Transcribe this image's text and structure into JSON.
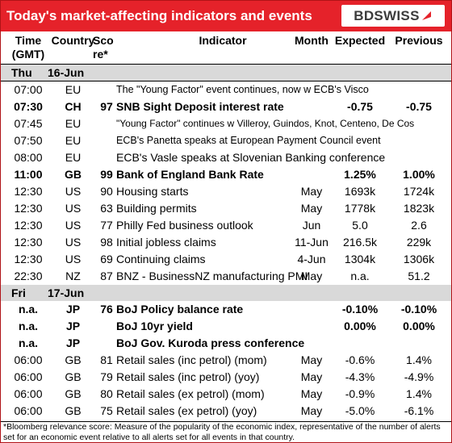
{
  "title": "Today's market-affecting indicators and events",
  "logo": {
    "text": "BDSWISS"
  },
  "header": {
    "time": "Time",
    "time2": "(GMT)",
    "country": "Country",
    "score": "Sco",
    "score2": "re*",
    "indicator": "Indicator",
    "month": "Month",
    "expected": "Expected",
    "previous": "Previous"
  },
  "days": [
    {
      "day": "Thu",
      "date": "16-Jun",
      "rows": [
        {
          "time": "07:00",
          "country": "EU",
          "score": "",
          "indicator": "The \"Young Factor\" event continues, now w ECB's Visco",
          "month": "",
          "expected": "",
          "previous": "",
          "bold": false
        },
        {
          "time": "07:30",
          "country": "CH",
          "score": "97",
          "indicator": "SNB Sight Deposit interest rate",
          "month": "",
          "expected": "-0.75",
          "previous": "-0.75",
          "bold": true
        },
        {
          "time": "07:45",
          "country": "EU",
          "score": "",
          "indicator": "\"Young Factor\" continues w Villeroy, Guindos, Knot, Centeno, De Cos",
          "month": "",
          "expected": "",
          "previous": "",
          "bold": false
        },
        {
          "time": "07:50",
          "country": "EU",
          "score": "",
          "indicator": "ECB's Panetta speaks at European Payment Council event",
          "month": "",
          "expected": "",
          "previous": "",
          "bold": false
        },
        {
          "time": "08:00",
          "country": "EU",
          "score": "",
          "indicator": "ECB's Vasle speaks at Slovenian Banking conference",
          "month": "",
          "expected": "",
          "previous": "",
          "bold": false
        },
        {
          "time": "11:00",
          "country": "GB",
          "score": "99",
          "indicator": "Bank of England Bank Rate",
          "month": "",
          "expected": "1.25%",
          "previous": "1.00%",
          "bold": true
        },
        {
          "time": "12:30",
          "country": "US",
          "score": "90",
          "indicator": "Housing starts",
          "month": "May",
          "expected": "1693k",
          "previous": "1724k",
          "bold": false
        },
        {
          "time": "12:30",
          "country": "US",
          "score": "63",
          "indicator": "Building permits",
          "month": "May",
          "expected": "1778k",
          "previous": "1823k",
          "bold": false
        },
        {
          "time": "12:30",
          "country": "US",
          "score": "77",
          "indicator": "Philly Fed business outlook",
          "month": "Jun",
          "expected": "5.0",
          "previous": "2.6",
          "bold": false
        },
        {
          "time": "12:30",
          "country": "US",
          "score": "98",
          "indicator": "Initial jobless claims",
          "month": "11-Jun",
          "expected": "216.5k",
          "previous": "229k",
          "bold": false
        },
        {
          "time": "12:30",
          "country": "US",
          "score": "69",
          "indicator": "Continuing claims",
          "month": "4-Jun",
          "expected": "1304k",
          "previous": "1306k",
          "bold": false
        },
        {
          "time": "22:30",
          "country": "NZ",
          "score": "87",
          "indicator": "BNZ - BusinessNZ manufacturing PMI",
          "month": "May",
          "expected": "n.a.",
          "previous": "51.2",
          "bold": false
        }
      ]
    },
    {
      "day": "Fri",
      "date": "17-Jun",
      "rows": [
        {
          "time": "n.a.",
          "country": "JP",
          "score": "76",
          "indicator": "BoJ  Policy balance rate",
          "month": "",
          "expected": "-0.10%",
          "previous": "-0.10%",
          "bold": true
        },
        {
          "time": "n.a.",
          "country": "JP",
          "score": "",
          "indicator": "BoJ 10yr yield",
          "month": "",
          "expected": "0.00%",
          "previous": "0.00%",
          "bold": true
        },
        {
          "time": "n.a.",
          "country": "JP",
          "score": "",
          "indicator": "BoJ Gov. Kuroda press conference",
          "month": "",
          "expected": "",
          "previous": "",
          "bold": true
        },
        {
          "time": "06:00",
          "country": "GB",
          "score": "81",
          "indicator": "Retail sales (inc petrol) (mom)",
          "month": "May",
          "expected": "-0.6%",
          "previous": "1.4%",
          "bold": false
        },
        {
          "time": "06:00",
          "country": "GB",
          "score": "79",
          "indicator": "Retail sales (inc petrol) (yoy)",
          "month": "May",
          "expected": "-4.3%",
          "previous": "-4.9%",
          "bold": false
        },
        {
          "time": "06:00",
          "country": "GB",
          "score": "80",
          "indicator": "Retail sales (ex petrol) (mom)",
          "month": "May",
          "expected": "-0.9%",
          "previous": "1.4%",
          "bold": false
        },
        {
          "time": "06:00",
          "country": "GB",
          "score": "75",
          "indicator": "Retail sales (ex petrol) (yoy)",
          "month": "May",
          "expected": "-5.0%",
          "previous": "-6.1%",
          "bold": false
        }
      ]
    }
  ],
  "footnote": "*Bloomberg relevance score:  Measure of the popularity of the economic index, representative of the number of alerts set for an economic event relative to all alerts set for all events in that country.",
  "colors": {
    "brand": "#e5222a",
    "day_band": "#d9d9d9"
  }
}
